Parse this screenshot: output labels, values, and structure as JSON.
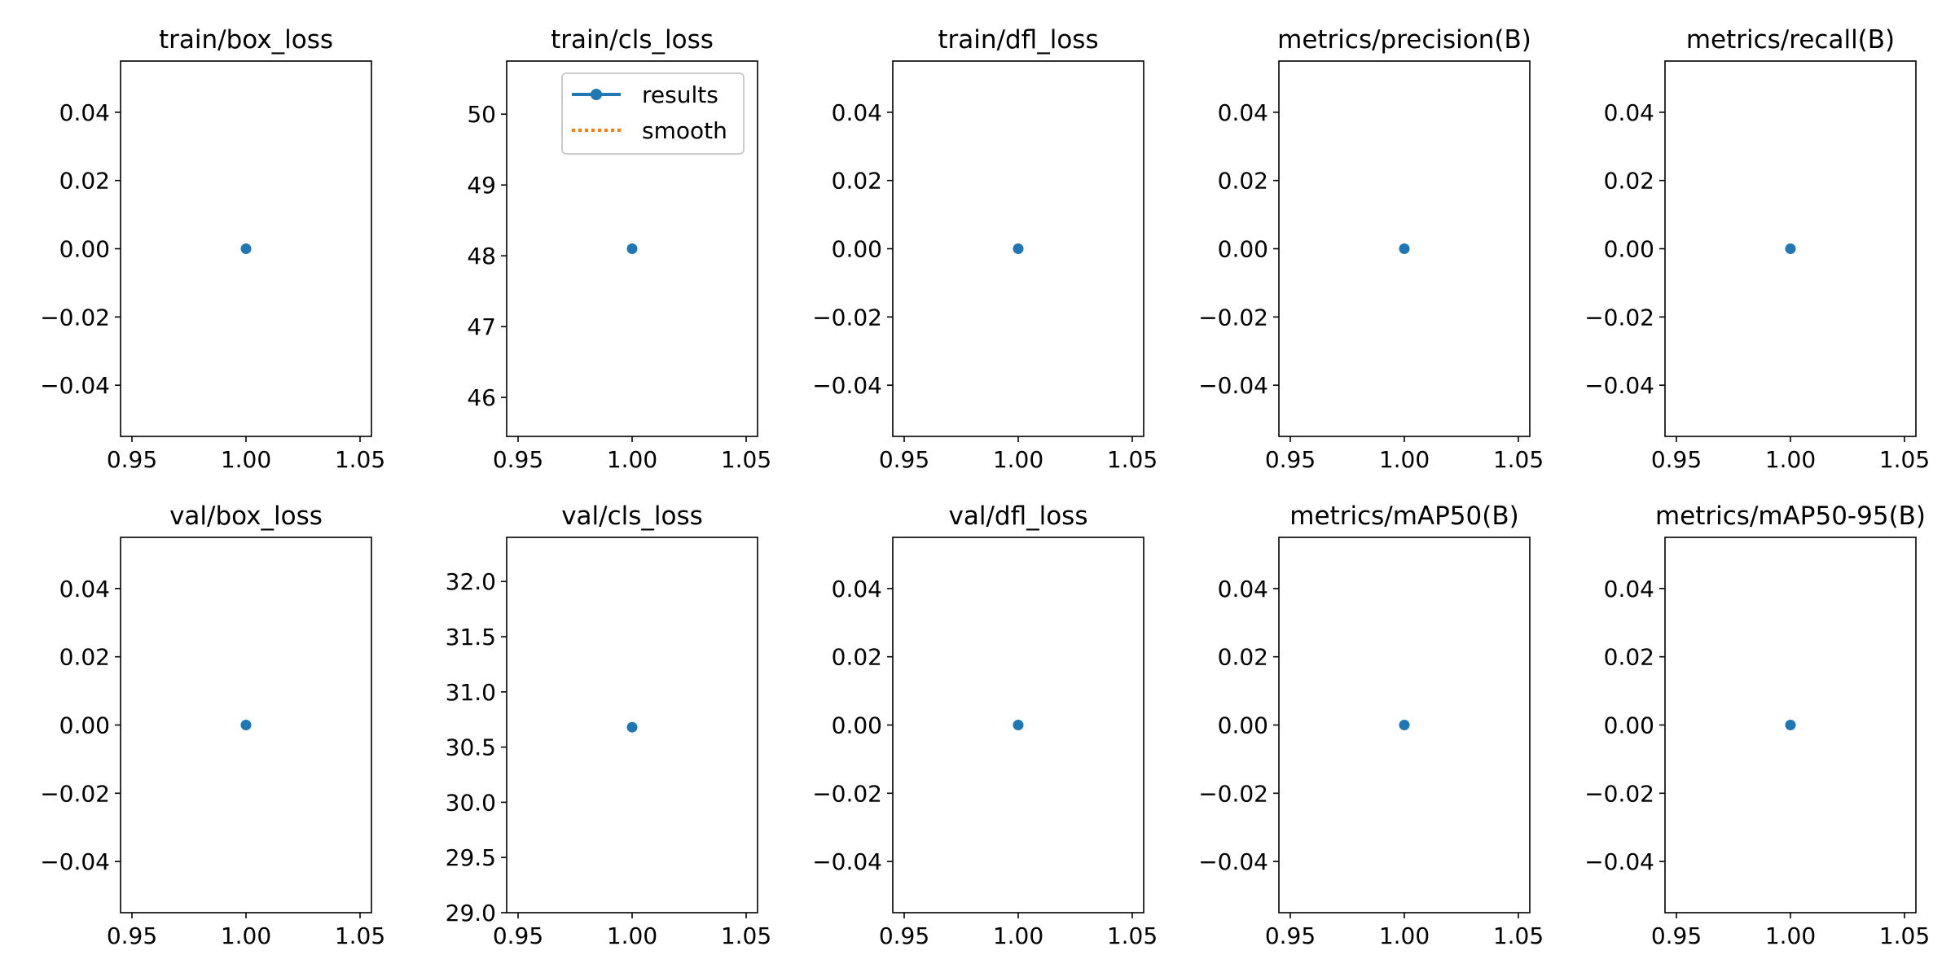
{
  "chart_data": [
    {
      "type": "line",
      "title": "train/box_loss",
      "x": [
        1.0
      ],
      "y": [
        0.0
      ],
      "xlim": [
        0.945,
        1.055
      ],
      "ylim": [
        -0.055,
        0.055
      ],
      "xticks": [
        0.95,
        1.0,
        1.05
      ],
      "xtick_labels": [
        "0.95",
        "1.00",
        "1.05"
      ],
      "yticks": [
        0.04,
        0.02,
        0.0,
        -0.02,
        -0.04
      ],
      "ytick_labels": [
        "0.04",
        "0.02",
        "0.00",
        "−0.02",
        "−0.04"
      ]
    },
    {
      "type": "line",
      "title": "train/cls_loss",
      "x": [
        1.0
      ],
      "y": [
        48.1
      ],
      "xlim": [
        0.945,
        1.055
      ],
      "ylim": [
        45.45,
        50.75
      ],
      "xticks": [
        0.95,
        1.0,
        1.05
      ],
      "xtick_labels": [
        "0.95",
        "1.00",
        "1.05"
      ],
      "yticks": [
        50,
        49,
        48,
        47,
        46
      ],
      "ytick_labels": [
        "50",
        "49",
        "48",
        "47",
        "46"
      ]
    },
    {
      "type": "line",
      "title": "train/dfl_loss",
      "x": [
        1.0
      ],
      "y": [
        0.0
      ],
      "xlim": [
        0.945,
        1.055
      ],
      "ylim": [
        -0.055,
        0.055
      ],
      "xticks": [
        0.95,
        1.0,
        1.05
      ],
      "xtick_labels": [
        "0.95",
        "1.00",
        "1.05"
      ],
      "yticks": [
        0.04,
        0.02,
        0.0,
        -0.02,
        -0.04
      ],
      "ytick_labels": [
        "0.04",
        "0.02",
        "0.00",
        "−0.02",
        "−0.04"
      ]
    },
    {
      "type": "line",
      "title": "metrics/precision(B)",
      "x": [
        1.0
      ],
      "y": [
        0.0
      ],
      "xlim": [
        0.945,
        1.055
      ],
      "ylim": [
        -0.055,
        0.055
      ],
      "xticks": [
        0.95,
        1.0,
        1.05
      ],
      "xtick_labels": [
        "0.95",
        "1.00",
        "1.05"
      ],
      "yticks": [
        0.04,
        0.02,
        0.0,
        -0.02,
        -0.04
      ],
      "ytick_labels": [
        "0.04",
        "0.02",
        "0.00",
        "−0.02",
        "−0.04"
      ]
    },
    {
      "type": "line",
      "title": "metrics/recall(B)",
      "x": [
        1.0
      ],
      "y": [
        0.0
      ],
      "xlim": [
        0.945,
        1.055
      ],
      "ylim": [
        -0.055,
        0.055
      ],
      "xticks": [
        0.95,
        1.0,
        1.05
      ],
      "xtick_labels": [
        "0.95",
        "1.00",
        "1.05"
      ],
      "yticks": [
        0.04,
        0.02,
        0.0,
        -0.02,
        -0.04
      ],
      "ytick_labels": [
        "0.04",
        "0.02",
        "0.00",
        "−0.02",
        "−0.04"
      ]
    },
    {
      "type": "line",
      "title": "val/box_loss",
      "x": [
        1.0
      ],
      "y": [
        0.0
      ],
      "xlim": [
        0.945,
        1.055
      ],
      "ylim": [
        -0.055,
        0.055
      ],
      "xticks": [
        0.95,
        1.0,
        1.05
      ],
      "xtick_labels": [
        "0.95",
        "1.00",
        "1.05"
      ],
      "yticks": [
        0.04,
        0.02,
        0.0,
        -0.02,
        -0.04
      ],
      "ytick_labels": [
        "0.04",
        "0.02",
        "0.00",
        "−0.02",
        "−0.04"
      ]
    },
    {
      "type": "line",
      "title": "val/cls_loss",
      "x": [
        1.0
      ],
      "y": [
        30.68
      ],
      "xlim": [
        0.945,
        1.055
      ],
      "ylim": [
        29.0,
        32.4
      ],
      "xticks": [
        0.95,
        1.0,
        1.05
      ],
      "xtick_labels": [
        "0.95",
        "1.00",
        "1.05"
      ],
      "yticks": [
        32.0,
        31.5,
        31.0,
        30.5,
        30.0,
        29.5,
        29.0
      ],
      "ytick_labels": [
        "32.0",
        "31.5",
        "31.0",
        "30.5",
        "30.0",
        "29.5",
        "29.0"
      ]
    },
    {
      "type": "line",
      "title": "val/dfl_loss",
      "x": [
        1.0
      ],
      "y": [
        0.0
      ],
      "xlim": [
        0.945,
        1.055
      ],
      "ylim": [
        -0.055,
        0.055
      ],
      "xticks": [
        0.95,
        1.0,
        1.05
      ],
      "xtick_labels": [
        "0.95",
        "1.00",
        "1.05"
      ],
      "yticks": [
        0.04,
        0.02,
        0.0,
        -0.02,
        -0.04
      ],
      "ytick_labels": [
        "0.04",
        "0.02",
        "0.00",
        "−0.02",
        "−0.04"
      ]
    },
    {
      "type": "line",
      "title": "metrics/mAP50(B)",
      "x": [
        1.0
      ],
      "y": [
        0.0
      ],
      "xlim": [
        0.945,
        1.055
      ],
      "ylim": [
        -0.055,
        0.055
      ],
      "xticks": [
        0.95,
        1.0,
        1.05
      ],
      "xtick_labels": [
        "0.95",
        "1.00",
        "1.05"
      ],
      "yticks": [
        0.04,
        0.02,
        0.0,
        -0.02,
        -0.04
      ],
      "ytick_labels": [
        "0.04",
        "0.02",
        "0.00",
        "−0.02",
        "−0.04"
      ]
    },
    {
      "type": "line",
      "title": "metrics/mAP50-95(B)",
      "x": [
        1.0
      ],
      "y": [
        0.0
      ],
      "xlim": [
        0.945,
        1.055
      ],
      "ylim": [
        -0.055,
        0.055
      ],
      "xticks": [
        0.95,
        1.0,
        1.05
      ],
      "xtick_labels": [
        "0.95",
        "1.00",
        "1.05"
      ],
      "yticks": [
        0.04,
        0.02,
        0.0,
        -0.02,
        -0.04
      ],
      "ytick_labels": [
        "0.04",
        "0.02",
        "0.00",
        "−0.02",
        "−0.04"
      ]
    }
  ],
  "legend": {
    "placement": "top-right",
    "entries": [
      {
        "label": "results",
        "color": "#1f77b4",
        "style": "solid-with-marker"
      },
      {
        "label": "smooth",
        "color": "#ff7f0e",
        "style": "dotted"
      }
    ]
  },
  "colors": {
    "results": "#1f77b4",
    "smooth": "#ff7f0e",
    "axes": "#000000",
    "background": "#ffffff"
  }
}
